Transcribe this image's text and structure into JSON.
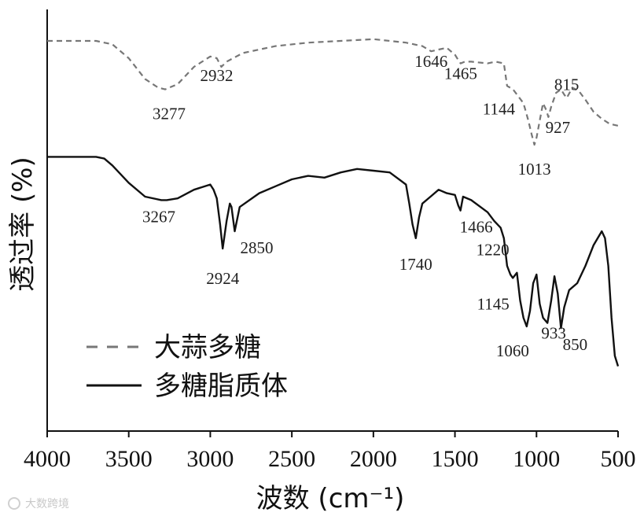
{
  "chart_data": {
    "type": "line",
    "xlabel": "波数 (cm⁻¹)",
    "ylabel": "透过率 (%)",
    "xlim": [
      4000,
      500
    ],
    "ylim": [
      0,
      100
    ],
    "xticks": [
      4000,
      3500,
      3000,
      2500,
      2000,
      1500,
      1000,
      500
    ],
    "grid": false,
    "legend_position": "bottom-left",
    "series": [
      {
        "name": "大蒜多糖",
        "style": "dashed",
        "color": "#777777",
        "x": [
          4000,
          3700,
          3600,
          3500,
          3400,
          3320,
          3277,
          3200,
          3100,
          3000,
          2960,
          2932,
          2900,
          2800,
          2600,
          2400,
          2200,
          2000,
          1900,
          1800,
          1700,
          1646,
          1600,
          1550,
          1500,
          1480,
          1465,
          1440,
          1400,
          1300,
          1250,
          1200,
          1180,
          1144,
          1120,
          1080,
          1050,
          1030,
          1013,
          1000,
          980,
          960,
          940,
          927,
          910,
          880,
          850,
          830,
          815,
          780,
          740,
          700,
          650,
          600,
          550,
          500
        ],
        "y": [
          95.0,
          95.0,
          94.0,
          90.0,
          84.0,
          81.5,
          81.0,
          82.5,
          87.5,
          90.5,
          90.0,
          87.5,
          89.0,
          91.5,
          93.5,
          94.5,
          95.0,
          95.5,
          95.0,
          94.5,
          93.5,
          92.0,
          92.5,
          93.0,
          91.0,
          89.5,
          88.5,
          89.0,
          89.0,
          88.5,
          89.0,
          88.5,
          82.0,
          81.0,
          79.5,
          77.0,
          72.0,
          68.0,
          65.0,
          67.0,
          72.0,
          77.0,
          75.0,
          73.0,
          76.0,
          80.0,
          81.0,
          79.5,
          78.5,
          81.5,
          80.5,
          78.0,
          74.5,
          72.5,
          71.0,
          70.5
        ]
      },
      {
        "name": "多糖脂质体",
        "style": "solid",
        "color": "#111111",
        "x": [
          4000,
          3700,
          3650,
          3600,
          3500,
          3400,
          3300,
          3267,
          3200,
          3100,
          3000,
          2980,
          2960,
          2940,
          2924,
          2900,
          2880,
          2870,
          2850,
          2820,
          2700,
          2600,
          2500,
          2400,
          2300,
          2200,
          2100,
          2000,
          1900,
          1800,
          1780,
          1760,
          1740,
          1720,
          1700,
          1650,
          1600,
          1550,
          1500,
          1480,
          1466,
          1450,
          1400,
          1300,
          1260,
          1220,
          1200,
          1180,
          1160,
          1145,
          1120,
          1100,
          1080,
          1060,
          1040,
          1020,
          1000,
          980,
          960,
          933,
          910,
          890,
          870,
          850,
          830,
          800,
          750,
          700,
          650,
          600,
          580,
          560,
          540,
          520,
          500
        ],
        "y": [
          61.5,
          61.5,
          61.0,
          59.0,
          54.0,
          50.0,
          49.0,
          49.0,
          49.5,
          52.0,
          53.5,
          52.0,
          49.5,
          42.0,
          35.0,
          43.0,
          48.0,
          47.0,
          40.0,
          47.0,
          51.0,
          53.0,
          55.0,
          56.0,
          55.5,
          57.0,
          58.0,
          57.5,
          57.0,
          53.5,
          48.0,
          42.0,
          38.0,
          44.0,
          48.0,
          50.0,
          52.0,
          51.0,
          50.5,
          47.5,
          46.0,
          50.0,
          49.0,
          45.5,
          43.0,
          41.0,
          38.0,
          30.0,
          27.5,
          26.5,
          28.0,
          20.0,
          15.0,
          12.5,
          17.0,
          25.0,
          27.5,
          19.0,
          15.0,
          13.5,
          20.0,
          27.0,
          22.0,
          12.0,
          18.0,
          23.0,
          25.0,
          30.0,
          36.0,
          40.0,
          38.0,
          30.0,
          15.0,
          4.0,
          1.0
        ]
      }
    ],
    "annotations": [
      {
        "text": "3277",
        "series": 0,
        "at": 3277
      },
      {
        "text": "2932",
        "series": 0,
        "at": 2932
      },
      {
        "text": "1646",
        "series": 0,
        "at": 1646
      },
      {
        "text": "1465",
        "series": 0,
        "at": 1465
      },
      {
        "text": "1144",
        "series": 0,
        "at": 1144
      },
      {
        "text": "1013",
        "series": 0,
        "at": 1013
      },
      {
        "text": "927",
        "series": 0,
        "at": 927
      },
      {
        "text": "815",
        "series": 0,
        "at": 815
      },
      {
        "text": "3267",
        "series": 1,
        "at": 3267
      },
      {
        "text": "2924",
        "series": 1,
        "at": 2924
      },
      {
        "text": "2850",
        "series": 1,
        "at": 2850
      },
      {
        "text": "1740",
        "series": 1,
        "at": 1740
      },
      {
        "text": "1466",
        "series": 1,
        "at": 1466
      },
      {
        "text": "1220",
        "series": 1,
        "at": 1220
      },
      {
        "text": "1145",
        "series": 1,
        "at": 1145
      },
      {
        "text": "1060",
        "series": 1,
        "at": 1060
      },
      {
        "text": "933",
        "series": 1,
        "at": 933
      },
      {
        "text": "850",
        "series": 1,
        "at": 850
      }
    ]
  },
  "watermark": "大数跨境"
}
